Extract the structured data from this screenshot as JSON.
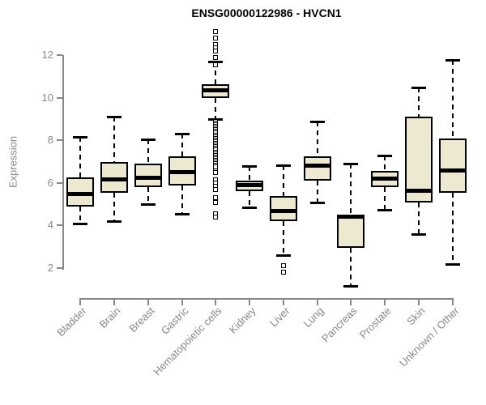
{
  "chart_data": {
    "type": "boxplot",
    "title": "ENSG00000122986 - HVCN1",
    "xlabel": "",
    "ylabel": "Expression",
    "ylim": [
      1.1,
      13.1
    ],
    "yticks": [
      2,
      4,
      6,
      8,
      10,
      12
    ],
    "grid": "off",
    "colors": {
      "box_fill": "#EDE8D0",
      "box_border": "#000000",
      "median": "#000000",
      "whisker": "#000000",
      "axis": "#888888",
      "title": "#000000",
      "background": "#ffffff"
    },
    "categories": [
      "Bladder",
      "Brain",
      "Breast",
      "Gastric",
      "Hematopoietic cells",
      "Kidney",
      "Liver",
      "Lung",
      "Pancreas",
      "Prostate",
      "Skin",
      "Unknown / Other"
    ],
    "boxes": [
      {
        "category": "Bladder",
        "whisker_low": 4.1,
        "q1": 4.9,
        "median": 5.5,
        "q3": 6.25,
        "whisker_high": 8.15,
        "outliers": []
      },
      {
        "category": "Brain",
        "whisker_low": 4.2,
        "q1": 5.55,
        "median": 6.15,
        "q3": 7.0,
        "whisker_high": 9.1,
        "outliers": []
      },
      {
        "category": "Breast",
        "whisker_low": 5.0,
        "q1": 5.8,
        "median": 6.25,
        "q3": 6.9,
        "whisker_high": 8.05,
        "outliers": []
      },
      {
        "category": "Gastric",
        "whisker_low": 4.55,
        "q1": 5.9,
        "median": 6.5,
        "q3": 7.25,
        "whisker_high": 8.3,
        "outliers": []
      },
      {
        "category": "Hematopoietic cells",
        "whisker_low": 9.0,
        "q1": 10.0,
        "median": 10.35,
        "q3": 10.65,
        "whisker_high": 11.7,
        "outliers": [
          13.1,
          12.8,
          12.5,
          12.35,
          12.2,
          11.9,
          11.55,
          6.6,
          6.5,
          6.15,
          6.0,
          5.85,
          5.7,
          5.3,
          5.1,
          4.55,
          4.4
        ],
        "outlier_dense_range": [
          6.7,
          8.9
        ]
      },
      {
        "category": "Kidney",
        "whisker_low": 4.85,
        "q1": 5.6,
        "median": 5.9,
        "q3": 6.1,
        "whisker_high": 6.8,
        "outliers": []
      },
      {
        "category": "Liver",
        "whisker_low": 2.6,
        "q1": 4.2,
        "median": 4.7,
        "q3": 5.4,
        "whisker_high": 6.85,
        "outliers": [
          2.1,
          1.8
        ]
      },
      {
        "category": "Lung",
        "whisker_low": 5.1,
        "q1": 6.1,
        "median": 6.8,
        "q3": 7.25,
        "whisker_high": 8.9,
        "outliers": []
      },
      {
        "category": "Pancreas",
        "whisker_low": 1.15,
        "q1": 2.95,
        "median": 4.4,
        "q3": 4.5,
        "whisker_high": 6.9,
        "outliers": []
      },
      {
        "category": "Prostate",
        "whisker_low": 4.75,
        "q1": 5.8,
        "median": 6.2,
        "q3": 6.55,
        "whisker_high": 7.3,
        "outliers": []
      },
      {
        "category": "Skin",
        "whisker_low": 3.6,
        "q1": 5.1,
        "median": 5.65,
        "q3": 9.1,
        "whisker_high": 10.5,
        "outliers": []
      },
      {
        "category": "Unknown / Other",
        "whisker_low": 2.2,
        "q1": 5.55,
        "median": 6.6,
        "q3": 8.1,
        "whisker_high": 11.8,
        "outliers": []
      }
    ]
  }
}
